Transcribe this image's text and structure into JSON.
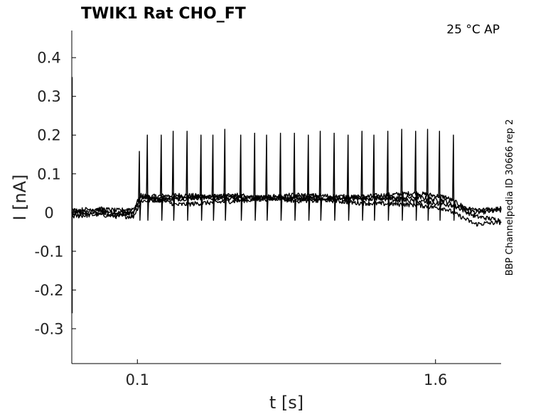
{
  "chart_data": {
    "type": "line",
    "title": "TWIK1  Rat  CHO_FT",
    "condition": "25 °C  AP",
    "xlabel": "t [s]",
    "ylabel": "I [nA]",
    "side_label": "BBP Channelpedia ID 30666 rep 2",
    "xlim": [
      -0.23,
      1.93
    ],
    "ylim": [
      -0.39,
      0.47
    ],
    "x_ticks": [
      {
        "value": 0.1,
        "label": "0.1"
      },
      {
        "value": 1.6,
        "label": "1.6"
      }
    ],
    "y_ticks": [
      {
        "value": 0.4,
        "label": "0.4"
      },
      {
        "value": 0.3,
        "label": "0.3"
      },
      {
        "value": 0.2,
        "label": "0.2"
      },
      {
        "value": 0.1,
        "label": "0.1"
      },
      {
        "value": 0,
        "label": "0"
      },
      {
        "value": -0.1,
        "label": "-0.1"
      },
      {
        "value": -0.2,
        "label": "-0.2"
      },
      {
        "value": -0.3,
        "label": "-0.3"
      }
    ],
    "grid": false,
    "stimulus": {
      "onset": 0.1,
      "offset": 1.6,
      "spike_times": [
        0.11,
        0.15,
        0.22,
        0.28,
        0.35,
        0.42,
        0.48,
        0.54,
        0.62,
        0.69,
        0.75,
        0.82,
        0.89,
        0.96,
        1.02,
        1.09,
        1.16,
        1.23,
        1.29,
        1.36,
        1.43,
        1.5,
        1.56,
        1.62,
        1.69
      ],
      "spike_peaks": [
        0.158,
        0.2,
        0.2,
        0.21,
        0.21,
        0.2,
        0.2,
        0.215,
        0.2,
        0.205,
        0.2,
        0.205,
        0.205,
        0.2,
        0.21,
        0.205,
        0.2,
        0.21,
        0.2,
        0.21,
        0.215,
        0.21,
        0.215,
        0.21,
        0.2
      ]
    },
    "series": [
      {
        "x": [
          -0.23,
          -0.1,
          0.0,
          0.08,
          0.12,
          0.3,
          0.6,
          0.9,
          1.2,
          1.5,
          1.65,
          1.8,
          1.93
        ],
        "y": [
          0.0,
          0.005,
          0.0,
          0.0,
          0.04,
          0.045,
          0.04,
          0.035,
          0.04,
          0.05,
          0.04,
          0.0,
          0.005
        ]
      },
      {
        "x": [
          -0.23,
          -0.1,
          0.0,
          0.08,
          0.12,
          0.3,
          0.6,
          0.9,
          1.2,
          1.5,
          1.65,
          1.8,
          1.93
        ],
        "y": [
          -0.01,
          -0.005,
          -0.01,
          -0.01,
          0.03,
          0.035,
          0.045,
          0.03,
          0.035,
          0.04,
          0.03,
          -0.01,
          -0.02
        ]
      },
      {
        "x": [
          -0.23,
          -0.1,
          0.0,
          0.08,
          0.12,
          0.3,
          0.6,
          0.9,
          1.2,
          1.5,
          1.65,
          1.8,
          1.93
        ],
        "y": [
          0.005,
          0.01,
          0.005,
          0.01,
          0.045,
          0.02,
          0.03,
          0.04,
          0.025,
          0.02,
          0.01,
          -0.03,
          -0.025
        ]
      },
      {
        "x": [
          -0.23,
          -0.1,
          0.0,
          0.08,
          0.12,
          0.3,
          0.6,
          0.9,
          1.2,
          1.5,
          1.65,
          1.8,
          1.93
        ],
        "y": [
          -0.005,
          0.0,
          -0.005,
          0.0,
          0.035,
          0.04,
          0.035,
          0.045,
          0.04,
          0.03,
          0.02,
          0.005,
          0.01
        ]
      }
    ]
  }
}
